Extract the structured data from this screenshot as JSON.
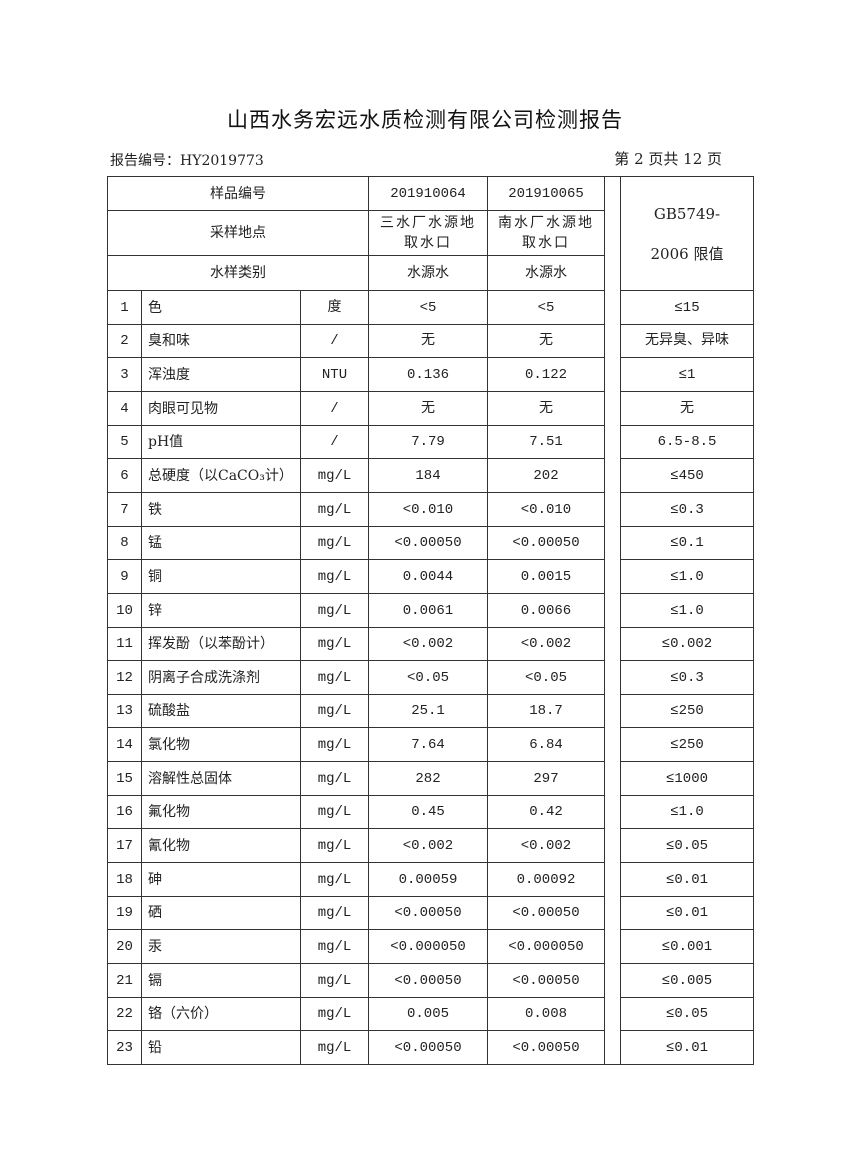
{
  "title": "山西水务宏远水质检测有限公司检测报告",
  "report_no": "报告编号：HY2019773",
  "page_info": "第 2 页共 12 页",
  "header": {
    "sample_no_label": "样品编号",
    "sample_nos": [
      "201910064",
      "201910065"
    ],
    "location_label": "采样地点",
    "locations": [
      "三水厂水源地取水口",
      "南水厂水源地取水口"
    ],
    "type_label": "水样类别",
    "types": [
      "水源水",
      "水源水"
    ],
    "limit_label": "GB5749-2006 限值"
  },
  "rows": [
    {
      "no": "1",
      "item": "色",
      "unit": "度",
      "v1": "<5",
      "v2": "<5",
      "limit": "≤15"
    },
    {
      "no": "2",
      "item": "臭和味",
      "unit": "/",
      "v1": "无",
      "v2": "无",
      "limit": "无异臭、异味"
    },
    {
      "no": "3",
      "item": "浑浊度",
      "unit": "NTU",
      "v1": "0.136",
      "v2": "0.122",
      "limit": "≤1"
    },
    {
      "no": "4",
      "item": "肉眼可见物",
      "unit": "/",
      "v1": "无",
      "v2": "无",
      "limit": "无"
    },
    {
      "no": "5",
      "item": "pH值",
      "unit": "/",
      "v1": "7.79",
      "v2": "7.51",
      "limit": "6.5-8.5"
    },
    {
      "no": "6",
      "item": "总硬度（以CaCO₃计）",
      "unit": "mg/L",
      "v1": "184",
      "v2": "202",
      "limit": "≤450"
    },
    {
      "no": "7",
      "item": "铁",
      "unit": "mg/L",
      "v1": "<0.010",
      "v2": "<0.010",
      "limit": "≤0.3"
    },
    {
      "no": "8",
      "item": "锰",
      "unit": "mg/L",
      "v1": "<0.00050",
      "v2": "<0.00050",
      "limit": "≤0.1"
    },
    {
      "no": "9",
      "item": "铜",
      "unit": "mg/L",
      "v1": "0.0044",
      "v2": "0.0015",
      "limit": "≤1.0"
    },
    {
      "no": "10",
      "item": "锌",
      "unit": "mg/L",
      "v1": "0.0061",
      "v2": "0.0066",
      "limit": "≤1.0"
    },
    {
      "no": "11",
      "item": "挥发酚（以苯酚计）",
      "unit": "mg/L",
      "v1": "<0.002",
      "v2": "<0.002",
      "limit": "≤0.002"
    },
    {
      "no": "12",
      "item": "阴离子合成洗涤剂",
      "unit": "mg/L",
      "v1": "<0.05",
      "v2": "<0.05",
      "limit": "≤0.3"
    },
    {
      "no": "13",
      "item": "硫酸盐",
      "unit": "mg/L",
      "v1": "25.1",
      "v2": "18.7",
      "limit": "≤250"
    },
    {
      "no": "14",
      "item": "氯化物",
      "unit": "mg/L",
      "v1": "7.64",
      "v2": "6.84",
      "limit": "≤250"
    },
    {
      "no": "15",
      "item": "溶解性总固体",
      "unit": "mg/L",
      "v1": "282",
      "v2": "297",
      "limit": "≤1000"
    },
    {
      "no": "16",
      "item": "氟化物",
      "unit": "mg/L",
      "v1": "0.45",
      "v2": "0.42",
      "limit": "≤1.0"
    },
    {
      "no": "17",
      "item": "氰化物",
      "unit": "mg/L",
      "v1": "<0.002",
      "v2": "<0.002",
      "limit": "≤0.05"
    },
    {
      "no": "18",
      "item": "砷",
      "unit": "mg/L",
      "v1": "0.00059",
      "v2": "0.00092",
      "limit": "≤0.01"
    },
    {
      "no": "19",
      "item": "硒",
      "unit": "mg/L",
      "v1": "<0.00050",
      "v2": "<0.00050",
      "limit": "≤0.01"
    },
    {
      "no": "20",
      "item": "汞",
      "unit": "mg/L",
      "v1": "<0.000050",
      "v2": "<0.000050",
      "limit": "≤0.001"
    },
    {
      "no": "21",
      "item": "镉",
      "unit": "mg/L",
      "v1": "<0.00050",
      "v2": "<0.00050",
      "limit": "≤0.005"
    },
    {
      "no": "22",
      "item": "铬（六价）",
      "unit": "mg/L",
      "v1": "0.005",
      "v2": "0.008",
      "limit": "≤0.05"
    },
    {
      "no": "23",
      "item": "铅",
      "unit": "mg/L",
      "v1": "<0.00050",
      "v2": "<0.00050",
      "limit": "≤0.01"
    }
  ]
}
